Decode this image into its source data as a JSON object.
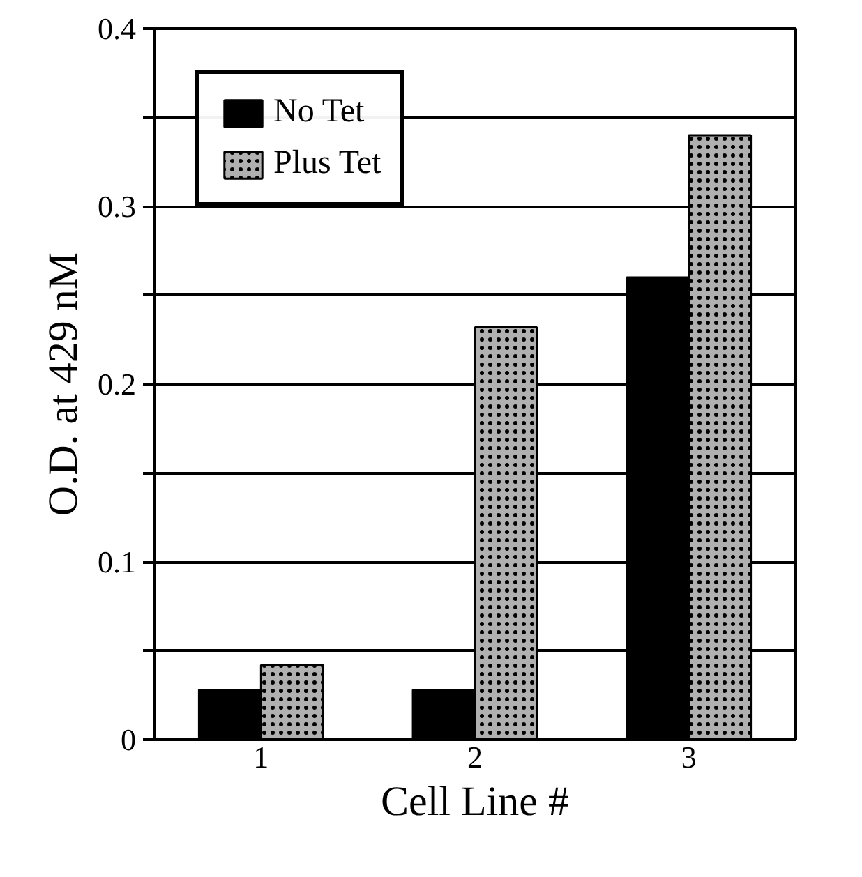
{
  "chart_data": {
    "type": "bar",
    "xlabel": "Cell Line #",
    "ylabel": "O.D. at 429 nM",
    "categories": [
      "1",
      "2",
      "3"
    ],
    "series": [
      {
        "name": "No Tet",
        "color": "#000000",
        "values": [
          0.028,
          0.028,
          0.26
        ]
      },
      {
        "name": "Plus Tet",
        "color": "#b0b0b0",
        "values": [
          0.042,
          0.232,
          0.34
        ]
      }
    ],
    "ylim": [
      0,
      0.4
    ],
    "yticks": [
      0,
      {
        "value": 0.05,
        "label": null
      },
      0.1,
      {
        "value": 0.15,
        "label": null
      },
      0.2,
      {
        "value": 0.25,
        "label": null
      },
      0.3,
      {
        "value": 0.35,
        "label": null
      },
      0.4
    ],
    "grid": "y",
    "legend": "top left"
  }
}
